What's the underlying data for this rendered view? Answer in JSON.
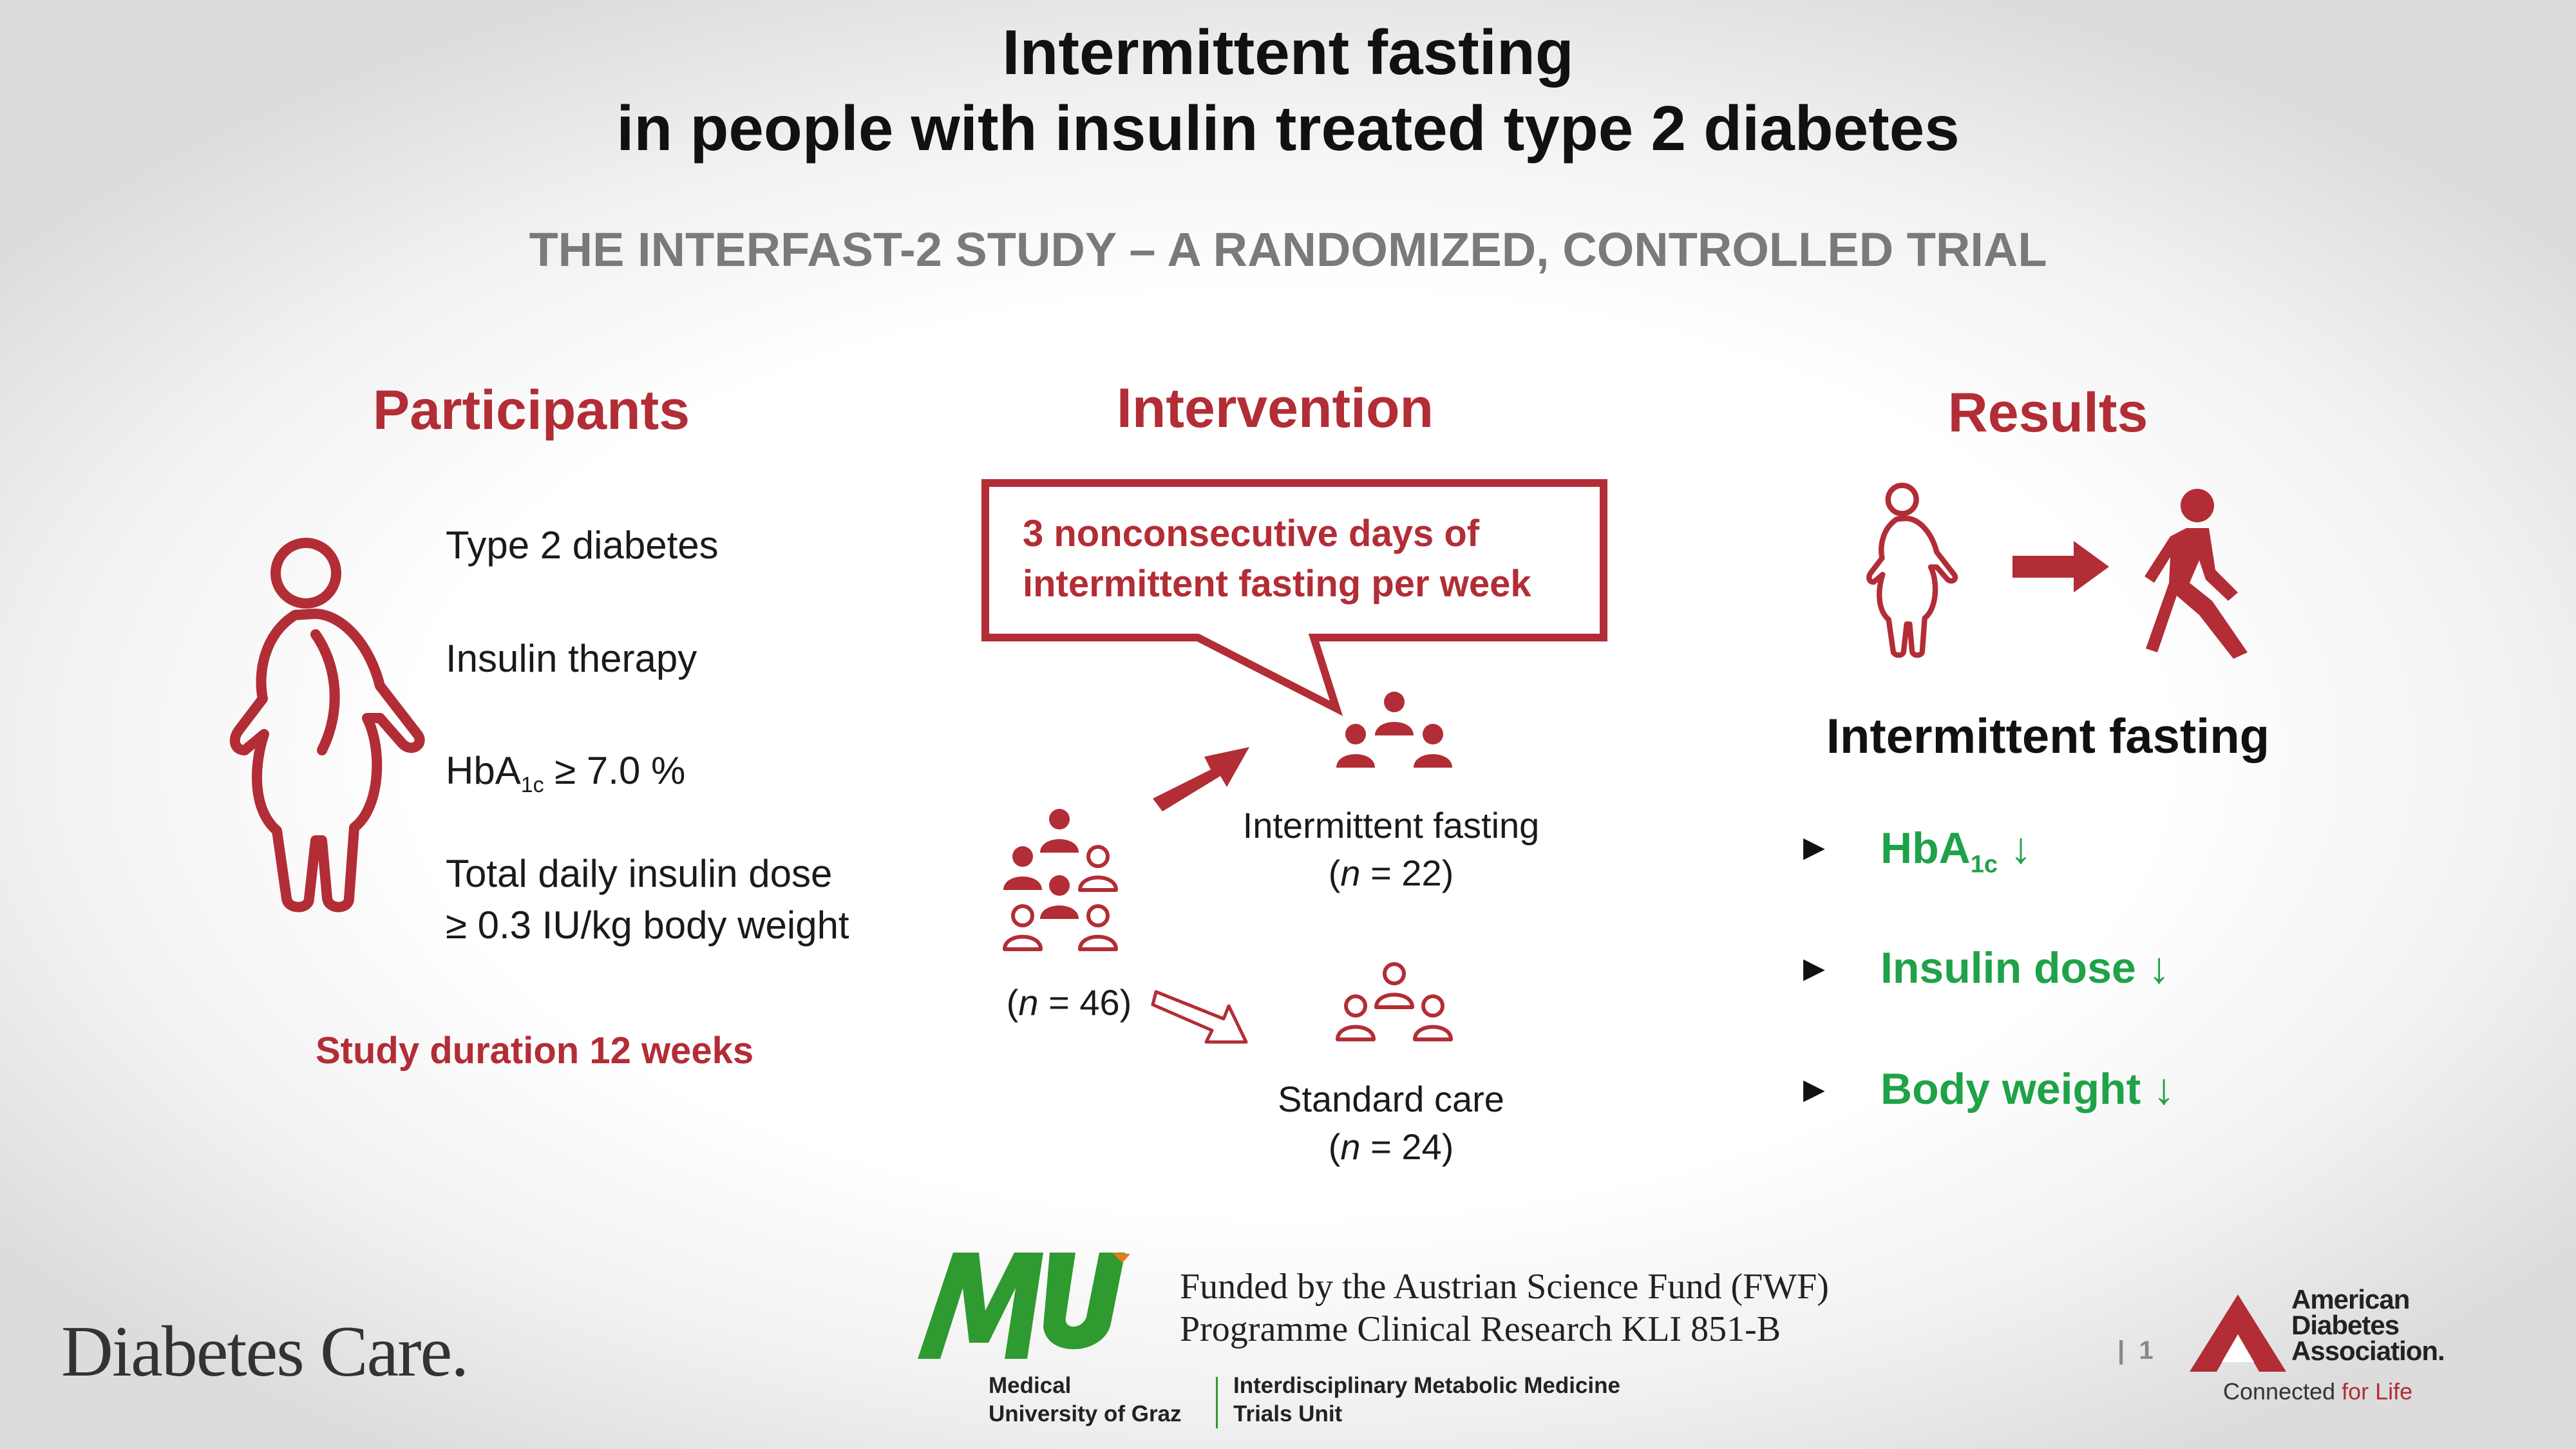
{
  "header": {
    "title_line1": "Intermittent fasting",
    "title_line2": "in people with insulin treated type 2 diabetes",
    "subtitle": "THE INTERFAST-2 STUDY – A RANDOMIZED, CONTROLLED TRIAL"
  },
  "participants": {
    "heading": "Participants",
    "criteria": {
      "diabetes": "Type 2 diabetes",
      "insulin": "Insulin therapy",
      "hba_base": "HbA",
      "hba_sub": "1c",
      "hba_rest": " ≥ 7.0 %",
      "dose_line1": "Total daily insulin dose",
      "dose_line2": "≥ 0.3 IU/kg body weight"
    },
    "duration": "Study duration 12 weeks"
  },
  "intervention": {
    "heading": "Intervention",
    "callout_line1": "3 nonconsecutive days of",
    "callout_line2": "intermittent fasting per week",
    "total": {
      "italic": "n",
      "rest": " = 46)",
      "open": "("
    },
    "group_if": {
      "label": "Intermittent fasting",
      "open": "(",
      "italic": "n",
      "rest": " = 22)"
    },
    "group_sc": {
      "label": "Standard care",
      "open": "(",
      "italic": "n",
      "rest": " = 24)"
    }
  },
  "results": {
    "heading": "Results",
    "subheading": "Intermittent fasting",
    "items": {
      "hba_base": "HbA",
      "hba_sub": "1c",
      "hba_arrow": " ↓",
      "insulin": "Insulin dose ↓",
      "weight": "Body weight ↓"
    },
    "bullet": "▶"
  },
  "footer": {
    "journal": "Diabetes Care.",
    "funding_line1": "Funded by the Austrian Science Fund (FWF)",
    "funding_line2": "Programme Clinical Research KLI 851-B",
    "mu_logo": "MU",
    "mu_name_line1": "Medical",
    "mu_name_line2": "University of Graz",
    "unit_line1": "Interdisciplinary Metabolic Medicine",
    "unit_line2": "Trials Unit",
    "page_sep": "|",
    "page": "1",
    "ada_line1": "American",
    "ada_line2": "Diabetes",
    "ada_line3": "Association.",
    "ada_tag_a": "Connected ",
    "ada_tag_b": "for Life"
  },
  "colors": {
    "red": "#b22d35",
    "green": "#1fa248",
    "mu_green": "#2f9a2f"
  }
}
